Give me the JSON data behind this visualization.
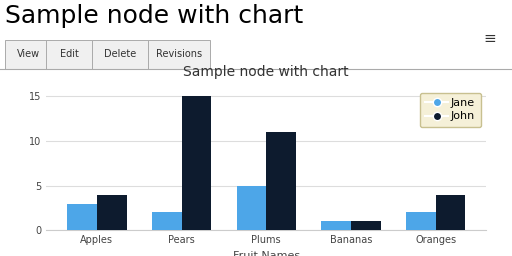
{
  "title": "Sample node with chart",
  "page_title": "Sample node with chart",
  "tabs": [
    "View",
    "Edit",
    "Delete",
    "Revisions"
  ],
  "xlabel": "Fruit Names",
  "categories": [
    "Apples",
    "Pears",
    "Plums",
    "Bananas",
    "Oranges"
  ],
  "jane_values": [
    3,
    2,
    5,
    1,
    2
  ],
  "john_values": [
    4,
    15,
    11,
    1,
    4
  ],
  "jane_color": "#4da6e8",
  "john_color": "#0d1b2e",
  "bar_width": 0.35,
  "ylim": [
    0,
    16
  ],
  "yticks": [
    0,
    5,
    10,
    15
  ],
  "background_color": "#ffffff",
  "plot_bg_color": "#ffffff",
  "grid_color": "#dddddd",
  "legend_bg": "#f5f0d8",
  "legend_edge": "#c8c090",
  "title_fontsize": 10,
  "axis_fontsize": 8,
  "tick_fontsize": 7,
  "legend_fontsize": 8,
  "hamburger_icon": "≡",
  "page_title_fontsize": 18,
  "tab_fontsize": 7
}
